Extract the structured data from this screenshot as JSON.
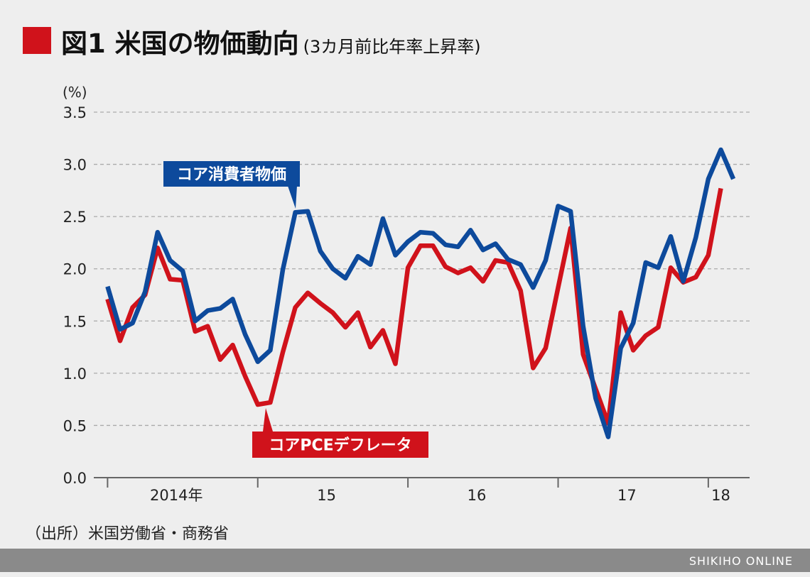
{
  "chart_data": {
    "type": "line",
    "title": "図1 米国の物価動向",
    "subtitle": "(3カ月前比年率上昇率)",
    "y_unit": "(%)",
    "source": "（出所）米国労働省・商務省",
    "footer": "SHIKIHO ONLINE",
    "x": [
      0,
      1,
      2,
      3,
      4,
      5,
      6,
      7,
      8,
      9,
      10,
      11,
      12,
      13,
      14,
      15,
      16,
      17,
      18,
      19,
      20,
      21,
      22,
      23,
      24,
      25,
      26,
      27,
      28,
      29,
      30,
      31,
      32,
      33,
      34,
      35,
      36,
      37,
      38,
      39,
      40,
      41,
      42,
      43,
      44,
      45,
      46,
      47,
      48,
      49,
      50
    ],
    "xlim": [
      -1.1,
      51.3
    ],
    "xticks": [
      {
        "value": 5.5,
        "label": "2014年"
      },
      {
        "value": 17.5,
        "label": "15"
      },
      {
        "value": 29.5,
        "label": "16"
      },
      {
        "value": 41.5,
        "label": "17"
      },
      {
        "value": 49,
        "label": "18"
      }
    ],
    "x_dividers": [
      0,
      12,
      24,
      36,
      48
    ],
    "ylim": [
      0,
      3.5
    ],
    "yticks": [
      {
        "value": 0,
        "label": "0.0"
      },
      0.5,
      {
        "value": 1,
        "label": "1.0"
      },
      1.5,
      {
        "value": 2,
        "label": "2.0"
      },
      2.5,
      {
        "value": 3,
        "label": "3.0"
      },
      3.5
    ],
    "grid": true,
    "series": [
      {
        "name": "コア消費者物価",
        "color": "#0d4a9c",
        "values": [
          1.83,
          1.42,
          1.48,
          1.78,
          2.35,
          2.08,
          1.98,
          1.5,
          1.6,
          1.62,
          1.71,
          1.37,
          1.11,
          1.22,
          1.99,
          2.54,
          2.55,
          2.17,
          2.0,
          1.91,
          2.12,
          2.04,
          2.48,
          2.13,
          2.26,
          2.35,
          2.34,
          2.23,
          2.21,
          2.37,
          2.18,
          2.24,
          2.09,
          2.04,
          1.82,
          2.08,
          2.6,
          2.55,
          1.45,
          0.76,
          0.39,
          1.24,
          1.48,
          2.06,
          2.01,
          2.31,
          1.88,
          2.3,
          2.86,
          3.14,
          2.86
        ]
      },
      {
        "name": "コアPCEデフレータ",
        "color": "#d0121b",
        "values": [
          1.71,
          1.31,
          1.63,
          1.75,
          2.2,
          1.9,
          1.89,
          1.4,
          1.45,
          1.13,
          1.27,
          0.97,
          0.7,
          0.72,
          1.2,
          1.63,
          1.77,
          1.67,
          1.58,
          1.44,
          1.58,
          1.25,
          1.41,
          1.09,
          2.01,
          2.22,
          2.22,
          2.02,
          1.96,
          2.01,
          1.88,
          2.08,
          2.06,
          1.79,
          1.05,
          1.24,
          1.82,
          2.39,
          1.18,
          0.85,
          0.52,
          1.58,
          1.22,
          1.36,
          1.44,
          2.01,
          1.87,
          1.92,
          2.13,
          2.77,
          null
        ]
      }
    ]
  }
}
